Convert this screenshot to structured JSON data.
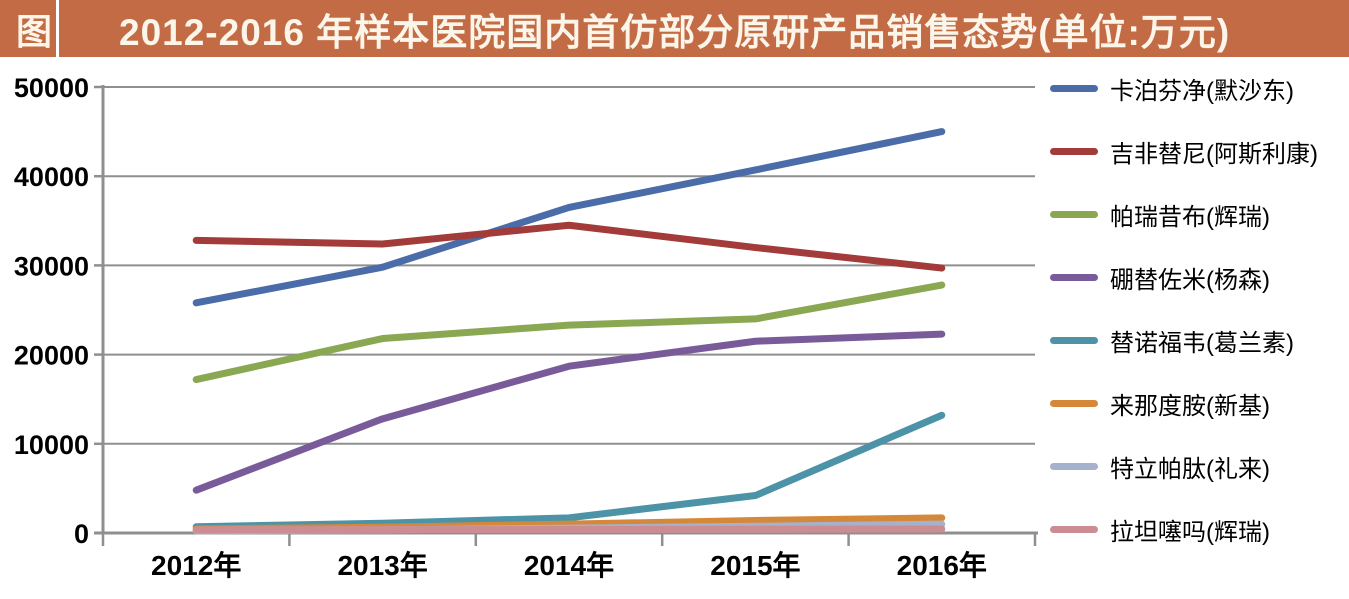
{
  "title_bar": {
    "prefix": "图",
    "title": "2012-2016 年样本医院国内首仿部分原研产品销售态势(单位:万元)",
    "bg_color": "#c36b44",
    "text_color": "#fcf5ea"
  },
  "chart_data": {
    "type": "line",
    "title": "2012-2016 年样本医院国内首仿部分原研产品销售态势",
    "unit": "万元",
    "categories": [
      "2012年",
      "2013年",
      "2014年",
      "2015年",
      "2016年"
    ],
    "series": [
      {
        "name": "卡泊芬净(默沙东)",
        "color": "#4a6ca8",
        "values": [
          25800,
          29800,
          36500,
          40700,
          45000
        ]
      },
      {
        "name": "吉非替尼(阿斯利康)",
        "color": "#a23b39",
        "values": [
          32800,
          32400,
          34500,
          32000,
          29700
        ]
      },
      {
        "name": "帕瑞昔布(辉瑞)",
        "color": "#8aa851",
        "values": [
          17200,
          21800,
          23300,
          24000,
          27800
        ]
      },
      {
        "name": "硼替佐米(杨森)",
        "color": "#7a5b9a",
        "values": [
          4800,
          12800,
          18700,
          21500,
          22300
        ]
      },
      {
        "name": "替诺福韦(葛兰素)",
        "color": "#4d93a8",
        "values": [
          700,
          1100,
          1700,
          4200,
          13200
        ]
      },
      {
        "name": "来那度胺(新基)",
        "color": "#d6883a",
        "values": [
          450,
          650,
          1000,
          1400,
          1700
        ]
      },
      {
        "name": "特立帕肽(礼来)",
        "color": "#a4b2cd",
        "values": [
          250,
          350,
          550,
          750,
          1000
        ]
      },
      {
        "name": "拉坦噻吗(辉瑞)",
        "color": "#cc8d92",
        "values": [
          350,
          380,
          400,
          420,
          450
        ]
      }
    ],
    "ylim": [
      0,
      50000
    ],
    "yticks": [
      0,
      10000,
      20000,
      30000,
      40000,
      50000
    ],
    "grid": true,
    "legend_position": "right",
    "axis_color": "#8f8f8f",
    "tick_label_color": "#000000"
  }
}
